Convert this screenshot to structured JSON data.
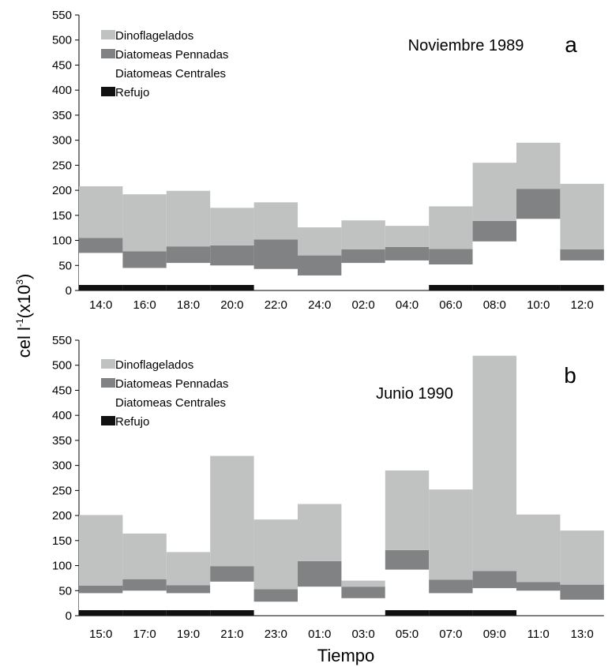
{
  "ylabel": "cel l",
  "ylabel_sup1": "-1",
  "ylabel_mid": "(x10",
  "ylabel_sup2": "3",
  "ylabel_end": ")",
  "xlabel": "Tiempo",
  "colors": {
    "dino": "#c0c2c2",
    "penn": "#808283",
    "cent": "#ffffff",
    "refujo": "#111111"
  },
  "chart_data": [
    {
      "type": "bar",
      "stacked": true,
      "title": "Noviembre 1989",
      "panel_label": "a",
      "legend": [
        "Dinoflagelados",
        "Diatomeas Pennadas",
        "Diatomeas Centrales",
        "Refujo"
      ],
      "legend_position": "top-left",
      "categories": [
        "14:0",
        "16:0",
        "18:0",
        "20:0",
        "22:0",
        "24:0",
        "02:0",
        "04:0",
        "06:0",
        "08:0",
        "10:0",
        "12:0"
      ],
      "ylim": [
        0,
        550
      ],
      "yticks": [
        0,
        50,
        100,
        150,
        200,
        250,
        300,
        350,
        400,
        450,
        500,
        550
      ],
      "series": [
        {
          "name": "Diatomeas Centrales",
          "values": [
            75,
            45,
            55,
            50,
            43,
            30,
            55,
            60,
            52,
            98,
            143,
            60
          ]
        },
        {
          "name": "Diatomeas Pennadas",
          "values": [
            30,
            33,
            33,
            40,
            59,
            40,
            27,
            27,
            31,
            41,
            60,
            22
          ]
        },
        {
          "name": "Dinoflagelados",
          "values": [
            103,
            114,
            111,
            75,
            74,
            56,
            58,
            42,
            85,
            116,
            92,
            131
          ]
        }
      ],
      "refujo": [
        1,
        1,
        1,
        1,
        0,
        0,
        0,
        0,
        1,
        1,
        1,
        1
      ]
    },
    {
      "type": "bar",
      "stacked": true,
      "title": "Junio 1990",
      "panel_label": "b",
      "legend": [
        "Dinoflagelados",
        "Diatomeas Pennadas",
        "Diatomeas Centrales",
        "Refujo"
      ],
      "legend_position": "top-left",
      "categories": [
        "15:0",
        "17:0",
        "19:0",
        "21:0",
        "23:0",
        "01:0",
        "03:0",
        "05:0",
        "07:0",
        "09:0",
        "11:0",
        "13:0"
      ],
      "ylim": [
        0,
        550
      ],
      "yticks": [
        0,
        50,
        100,
        150,
        200,
        250,
        300,
        350,
        400,
        450,
        500,
        550
      ],
      "series": [
        {
          "name": "Diatomeas Centrales",
          "values": [
            45,
            50,
            45,
            68,
            28,
            58,
            35,
            92,
            45,
            55,
            50,
            32
          ]
        },
        {
          "name": "Diatomeas Pennadas",
          "values": [
            15,
            23,
            16,
            31,
            25,
            51,
            23,
            39,
            27,
            34,
            17,
            30
          ]
        },
        {
          "name": "Dinoflagelados",
          "values": [
            141,
            91,
            66,
            220,
            139,
            114,
            12,
            159,
            180,
            430,
            135,
            108
          ]
        }
      ],
      "refujo": [
        1,
        1,
        1,
        1,
        0,
        0,
        0,
        1,
        1,
        1,
        0,
        0
      ]
    }
  ]
}
